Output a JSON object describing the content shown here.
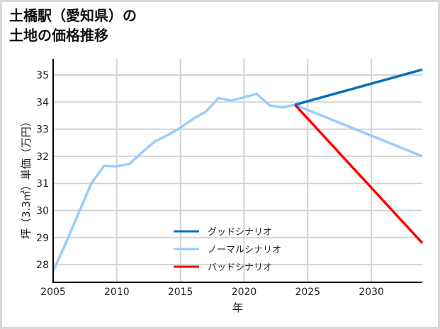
{
  "title": {
    "line1": "土橋駅（愛知県）の",
    "line2": "土地の価格推移"
  },
  "colors": {
    "good": "#0070c0",
    "normal": "#99ccff",
    "bad": "#ff0000",
    "grid": "#d3d3d3",
    "axis": "#000000",
    "border": "#d9d9d9"
  },
  "chart_data": {
    "type": "line",
    "title": "土橋駅（愛知県）の土地の価格推移",
    "xlabel": "年",
    "ylabel": "坪（3.3㎡）単価（万円）",
    "xlim": [
      2005,
      2034
    ],
    "ylim": [
      27.35,
      35.6
    ],
    "xticks": [
      2005,
      2010,
      2015,
      2020,
      2025,
      2030
    ],
    "yticks": [
      28,
      29,
      30,
      31,
      32,
      33,
      34,
      35
    ],
    "grid": true,
    "legend_position": "lower center",
    "series": [
      {
        "name": "グッドシナリオ",
        "color": "#0070c0",
        "x": [
          2024,
          2034
        ],
        "values": [
          33.9,
          35.2
        ]
      },
      {
        "name": "ノーマルシナリオ",
        "color": "#99ccff",
        "x": [
          2005,
          2006,
          2007,
          2008,
          2009,
          2010,
          2011,
          2012,
          2013,
          2014,
          2015,
          2016,
          2017,
          2018,
          2019,
          2020,
          2021,
          2022,
          2023,
          2024,
          2034
        ],
        "values": [
          27.75,
          28.8,
          29.9,
          31.0,
          31.65,
          31.63,
          31.72,
          32.15,
          32.55,
          32.78,
          33.05,
          33.38,
          33.65,
          34.15,
          34.05,
          34.18,
          34.3,
          33.88,
          33.8,
          33.9,
          32.0
        ]
      },
      {
        "name": "バッドシナリオ",
        "color": "#ff0000",
        "x": [
          2024,
          2034
        ],
        "values": [
          33.9,
          28.8
        ]
      }
    ]
  }
}
